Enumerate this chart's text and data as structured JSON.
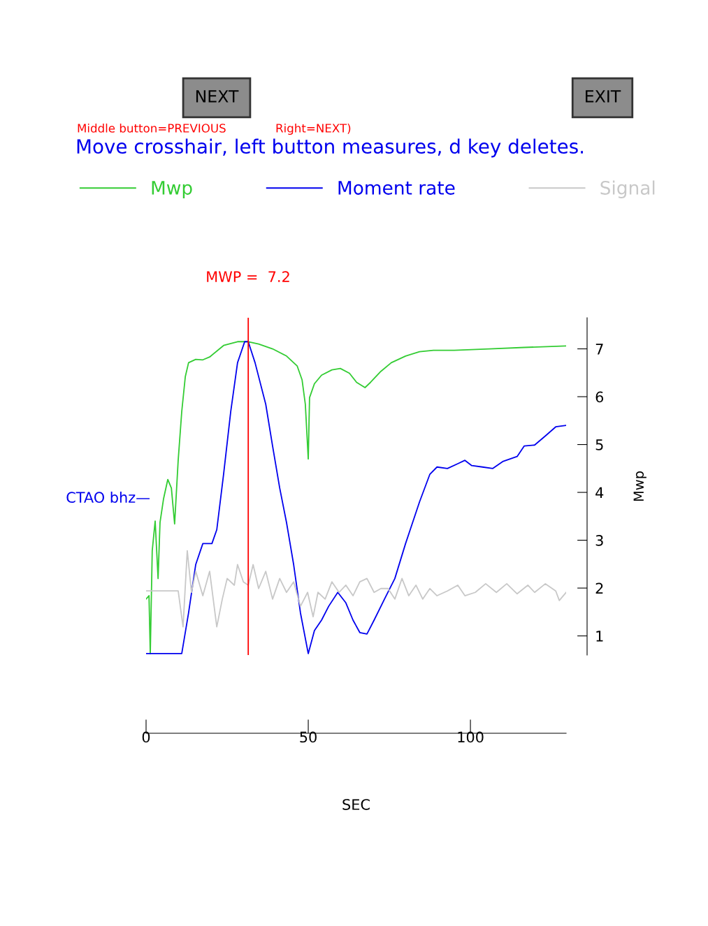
{
  "chart_data": {
    "type": "line",
    "xlabel": "SEC",
    "ylabel": "Mwp",
    "xlim": [
      0,
      129.5
    ],
    "xticks": [
      0,
      50,
      100
    ],
    "ylim": [
      0.6,
      7.65
    ],
    "yticks": [
      1,
      2,
      3,
      4,
      5,
      6,
      7
    ],
    "legend": "top",
    "grid": false,
    "marker": "none",
    "line_style": "solid",
    "ref_lines": [
      {
        "axis": "x",
        "value": 31.5,
        "color": "#ff0000"
      }
    ],
    "annotations": [
      "NEXT",
      "EXIT",
      "Middle button=PREVIOUS",
      "Right=NEXT)",
      "Move crosshair, left button measures, d key deletes.",
      "CTAO bhz—",
      "MWP =  7.2"
    ],
    "series": [
      {
        "name": "Mwp",
        "color": "#33cc33",
        "x": [
          0,
          0.9,
          1.3,
          1.9,
          2.8,
          3.7,
          4.3,
          5.4,
          6.7,
          7.8,
          8.8,
          9.9,
          11.0,
          12.1,
          13.1,
          15.3,
          17.5,
          19.6,
          23.9,
          28.2,
          31.5,
          34.7,
          39.0,
          43.3,
          46.6,
          48.1,
          49.1,
          50.0,
          50.4,
          51.9,
          54.1,
          57.3,
          59.9,
          62.7,
          64.9,
          67.5,
          69.2,
          72.4,
          75.6,
          80.0,
          84.3,
          88.6,
          95.0,
          105.8,
          116.6,
          129.5
        ],
        "values": [
          1.77,
          1.84,
          0.63,
          2.78,
          3.4,
          2.2,
          3.37,
          3.87,
          4.27,
          4.09,
          3.34,
          4.67,
          5.69,
          6.42,
          6.71,
          6.78,
          6.77,
          6.83,
          7.07,
          7.15,
          7.15,
          7.1,
          7.0,
          6.85,
          6.64,
          6.35,
          5.84,
          4.7,
          5.98,
          6.27,
          6.45,
          6.56,
          6.59,
          6.49,
          6.3,
          6.19,
          6.3,
          6.53,
          6.71,
          6.85,
          6.94,
          6.97,
          6.97,
          7.0,
          7.03,
          7.06
        ]
      },
      {
        "name": "Moment rate",
        "color": "#0000ee",
        "x": [
          0,
          11.0,
          13.1,
          15.3,
          17.5,
          20.3,
          21.8,
          23.9,
          26.1,
          28.2,
          30.4,
          31.5,
          33.6,
          36.9,
          39.0,
          41.2,
          43.3,
          45.5,
          47.6,
          50.0,
          51.9,
          54.1,
          56.3,
          59.1,
          61.6,
          63.8,
          65.9,
          68.1,
          70.3,
          73.5,
          76.7,
          80.0,
          84.3,
          87.5,
          89.7,
          92.9,
          96.1,
          98.3,
          100.4,
          103.7,
          106.9,
          110.1,
          114.4,
          116.6,
          119.8,
          123.1,
          126.3,
          129.5
        ],
        "values": [
          0.63,
          0.63,
          1.48,
          2.49,
          2.93,
          2.93,
          3.22,
          4.38,
          5.69,
          6.71,
          7.15,
          7.15,
          6.71,
          5.84,
          4.97,
          4.09,
          3.37,
          2.49,
          1.48,
          0.63,
          1.11,
          1.33,
          1.62,
          1.91,
          1.69,
          1.33,
          1.07,
          1.04,
          1.33,
          1.77,
          2.2,
          2.93,
          3.8,
          4.38,
          4.53,
          4.5,
          4.6,
          4.67,
          4.56,
          4.53,
          4.5,
          4.65,
          4.75,
          4.97,
          4.99,
          5.18,
          5.37,
          5.4
        ]
      },
      {
        "name": "Signal",
        "color": "#c8c8c8",
        "x": [
          0,
          9.9,
          11.4,
          12.7,
          14.0,
          15.3,
          17.5,
          19.6,
          21.8,
          23.5,
          25.0,
          27.2,
          28.2,
          30.0,
          31.5,
          33.0,
          34.7,
          36.9,
          39.0,
          41.2,
          43.3,
          45.5,
          47.6,
          49.8,
          51.5,
          53.0,
          55.2,
          57.3,
          59.5,
          61.6,
          63.8,
          65.9,
          68.1,
          70.3,
          72.4,
          74.6,
          76.7,
          78.9,
          81.0,
          83.2,
          85.3,
          87.5,
          89.7,
          92.9,
          96.1,
          98.3,
          101.5,
          104.7,
          108.0,
          111.2,
          114.4,
          117.7,
          119.8,
          123.1,
          126.3,
          127.4,
          129.5
        ],
        "values": [
          1.94,
          1.94,
          1.19,
          2.78,
          1.91,
          2.35,
          1.84,
          2.35,
          1.19,
          1.77,
          2.2,
          2.06,
          2.49,
          2.13,
          2.06,
          2.49,
          1.99,
          2.35,
          1.77,
          2.2,
          1.91,
          2.13,
          1.62,
          1.91,
          1.4,
          1.91,
          1.77,
          2.13,
          1.91,
          2.06,
          1.84,
          2.13,
          2.2,
          1.91,
          1.99,
          1.99,
          1.77,
          2.2,
          1.84,
          2.06,
          1.77,
          1.99,
          1.84,
          1.94,
          2.06,
          1.84,
          1.91,
          2.09,
          1.91,
          2.09,
          1.88,
          2.06,
          1.91,
          2.09,
          1.94,
          1.74,
          1.91
        ]
      }
    ]
  }
}
